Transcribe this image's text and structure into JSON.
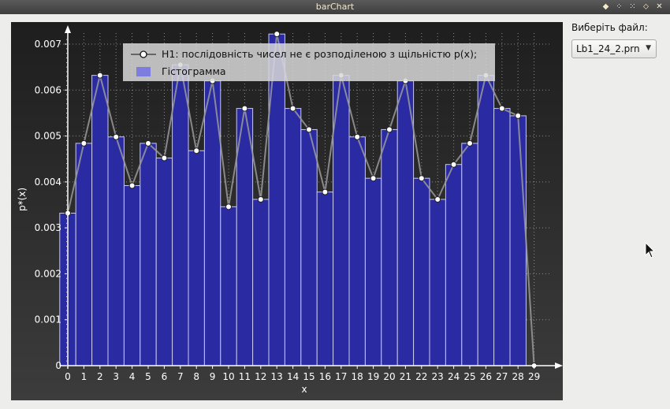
{
  "window": {
    "title": "barChart",
    "buttons": [
      "diamond-icon",
      "restore-icon",
      "shade-icon",
      "maximize-icon",
      "close-icon"
    ],
    "button_glyphs": [
      "◆",
      "⁘",
      "⁙",
      "⬦",
      "✕"
    ]
  },
  "sidebar": {
    "file_label": "Виберіть файл:",
    "file_value": "Lb1_24_2.prn"
  },
  "chart_data": {
    "type": "bar",
    "xlabel": "x",
    "ylabel": "p*(x)",
    "ylim": [
      0,
      0.0072
    ],
    "yticks": [
      0,
      0.001,
      0.002,
      0.003,
      0.004,
      0.005,
      0.006,
      0.007
    ],
    "ytick_labels": [
      "0",
      "0.001",
      "0.002",
      "0.003",
      "0.004",
      "0.005",
      "0.006",
      "0.007"
    ],
    "categories": [
      "0",
      "1",
      "2",
      "3",
      "4",
      "5",
      "6",
      "7",
      "8",
      "9",
      "10",
      "11",
      "12",
      "13",
      "14",
      "15",
      "16",
      "17",
      "18",
      "19",
      "20",
      "21",
      "22",
      "23",
      "24",
      "25",
      "26",
      "27",
      "28",
      "29"
    ],
    "grid": true,
    "legend_position": "top",
    "legend": [
      {
        "label": "H1: послідовність чисел не є розподіленою з щільністю p(x);",
        "kind": "line"
      },
      {
        "label": "Гістограмма",
        "kind": "bar"
      }
    ],
    "series": [
      {
        "name": "Гістограмма",
        "type": "bar",
        "color": "#2a2aa3",
        "values": [
          0.00332,
          0.00484,
          0.00632,
          0.00498,
          0.00392,
          0.00484,
          0.00452,
          0.00655,
          0.00468,
          0.0062,
          0.00346,
          0.0056,
          0.00362,
          0.00722,
          0.0056,
          0.00514,
          0.00378,
          0.00632,
          0.00498,
          0.00408,
          0.00514,
          0.0062,
          0.00408,
          0.00362,
          0.00438,
          0.00484,
          0.00632,
          0.0056,
          0.00544,
          0
        ]
      },
      {
        "name": "H1: послідовність чисел не є розподіленою з щільністю p(x);",
        "type": "line",
        "color": "#9a9a9a",
        "values": [
          0.00332,
          0.00484,
          0.00632,
          0.00498,
          0.00392,
          0.00484,
          0.00452,
          0.00655,
          0.00468,
          0.0062,
          0.00346,
          0.0056,
          0.00362,
          0.00722,
          0.0056,
          0.00514,
          0.00378,
          0.00632,
          0.00498,
          0.00408,
          0.00514,
          0.0062,
          0.00408,
          0.00362,
          0.00438,
          0.00484,
          0.00632,
          0.0056,
          0.00544,
          0
        ]
      }
    ]
  }
}
